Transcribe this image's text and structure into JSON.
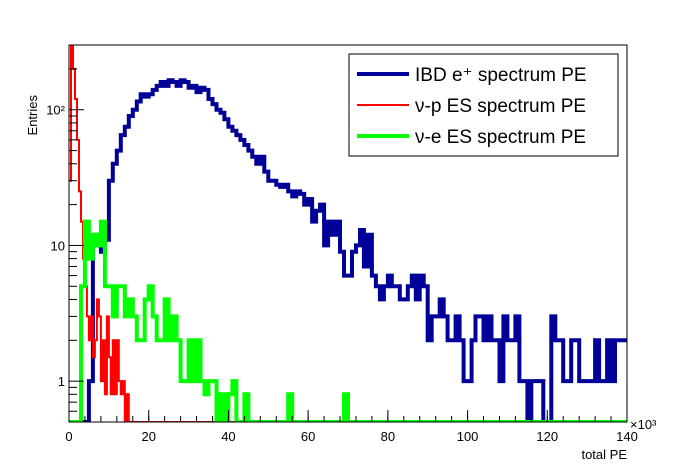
{
  "chart_data": {
    "type": "histogram",
    "xlabel": "total PE",
    "ylabel": "Entries",
    "x_multiplier": "×10³",
    "xlim": [
      0,
      140
    ],
    "ylim": [
      0.5,
      300
    ],
    "yscale": "log",
    "x_ticks": [
      "0",
      "20",
      "40",
      "60",
      "80",
      "100",
      "120",
      "140"
    ],
    "y_ticks": [
      {
        "value": 1,
        "label": "1"
      },
      {
        "value": 10,
        "label": "10"
      },
      {
        "value": 100,
        "label": "10²"
      }
    ],
    "legend": {
      "placement": "top-right",
      "entries": [
        "IBD e⁺ spectrum PE",
        "ν-p ES spectrum PE",
        "ν-e ES spectrum PE"
      ]
    },
    "series": [
      {
        "name": "IBD e⁺ spectrum PE",
        "color": "#000099",
        "bins": [
          [
            0,
            0.5
          ],
          [
            4,
            0.5
          ],
          [
            5,
            1
          ],
          [
            6,
            10
          ],
          [
            7,
            12
          ],
          [
            8,
            9
          ],
          [
            9,
            11
          ],
          [
            10,
            30
          ],
          [
            11,
            40
          ],
          [
            12,
            50
          ],
          [
            13,
            65
          ],
          [
            14,
            75
          ],
          [
            15,
            90
          ],
          [
            16,
            100
          ],
          [
            17,
            115
          ],
          [
            18,
            130
          ],
          [
            19,
            125
          ],
          [
            20,
            130
          ],
          [
            21,
            140
          ],
          [
            22,
            150
          ],
          [
            23,
            160
          ],
          [
            24,
            150
          ],
          [
            25,
            165
          ],
          [
            26,
            160
          ],
          [
            27,
            150
          ],
          [
            28,
            165
          ],
          [
            29,
            160
          ],
          [
            30,
            145
          ],
          [
            31,
            150
          ],
          [
            32,
            135
          ],
          [
            33,
            145
          ],
          [
            34,
            140
          ],
          [
            35,
            120
          ],
          [
            36,
            110
          ],
          [
            37,
            100
          ],
          [
            38,
            95
          ],
          [
            39,
            85
          ],
          [
            40,
            75
          ],
          [
            41,
            70
          ],
          [
            42,
            65
          ],
          [
            43,
            60
          ],
          [
            44,
            55
          ],
          [
            45,
            50
          ],
          [
            46,
            45
          ],
          [
            47,
            40
          ],
          [
            48,
            45
          ],
          [
            49,
            35
          ],
          [
            50,
            30
          ],
          [
            51,
            30
          ],
          [
            52,
            28
          ],
          [
            53,
            27
          ],
          [
            54,
            28
          ],
          [
            55,
            25
          ],
          [
            56,
            23
          ],
          [
            57,
            25
          ],
          [
            58,
            24
          ],
          [
            59,
            20
          ],
          [
            60,
            22
          ],
          [
            61,
            15
          ],
          [
            62,
            18
          ],
          [
            63,
            20
          ],
          [
            64,
            10
          ],
          [
            65,
            15
          ],
          [
            66,
            12
          ],
          [
            67,
            15
          ],
          [
            68,
            9
          ],
          [
            69,
            6
          ],
          [
            70,
            6
          ],
          [
            71,
            9
          ],
          [
            72,
            10
          ],
          [
            73,
            13
          ],
          [
            74,
            7
          ],
          [
            75,
            12
          ],
          [
            76,
            6
          ],
          [
            77,
            5
          ],
          [
            78,
            4
          ],
          [
            79,
            5
          ],
          [
            80,
            6
          ],
          [
            81,
            5
          ],
          [
            82,
            5
          ],
          [
            83,
            4
          ],
          [
            84,
            4
          ],
          [
            85,
            5
          ],
          [
            86,
            6
          ],
          [
            87,
            4
          ],
          [
            88,
            6
          ],
          [
            89,
            5
          ],
          [
            90,
            2
          ],
          [
            91,
            3
          ],
          [
            92,
            3
          ],
          [
            93,
            4
          ],
          [
            94,
            3
          ],
          [
            95,
            2
          ],
          [
            96,
            2
          ],
          [
            97,
            3
          ],
          [
            98,
            2
          ],
          [
            99,
            1
          ],
          [
            100,
            1
          ],
          [
            101,
            2
          ],
          [
            102,
            3
          ],
          [
            103,
            3
          ],
          [
            104,
            2
          ],
          [
            105,
            3
          ],
          [
            106,
            2
          ],
          [
            107,
            2
          ],
          [
            108,
            1
          ],
          [
            109,
            3
          ],
          [
            110,
            2
          ],
          [
            111,
            2
          ],
          [
            112,
            3
          ],
          [
            113,
            1
          ],
          [
            114,
            1
          ],
          [
            115,
            0.5
          ],
          [
            116,
            1
          ],
          [
            117,
            1
          ],
          [
            118,
            1
          ],
          [
            119,
            0.5
          ],
          [
            120,
            0.5
          ],
          [
            121,
            3
          ],
          [
            122,
            2
          ],
          [
            123,
            2
          ],
          [
            124,
            1
          ],
          [
            125,
            1
          ],
          [
            126,
            2
          ],
          [
            127,
            2
          ],
          [
            128,
            1
          ],
          [
            129,
            1
          ],
          [
            130,
            1
          ],
          [
            131,
            1
          ],
          [
            132,
            2
          ],
          [
            133,
            1
          ],
          [
            134,
            1
          ],
          [
            135,
            2
          ],
          [
            136,
            1
          ],
          [
            137,
            2
          ],
          [
            138,
            2
          ],
          [
            139,
            2
          ]
        ]
      },
      {
        "name": "ν-p ES spectrum PE",
        "color": "#ff0000",
        "bins": [
          [
            0,
            30
          ],
          [
            0.5,
            300
          ],
          [
            1,
            200
          ],
          [
            1.5,
            120
          ],
          [
            2,
            60
          ],
          [
            2.5,
            25
          ],
          [
            3,
            15
          ],
          [
            3.5,
            8
          ],
          [
            4,
            5
          ],
          [
            4.5,
            3
          ],
          [
            5,
            2
          ],
          [
            5.5,
            3
          ],
          [
            6,
            1.5
          ],
          [
            6.5,
            2
          ],
          [
            7,
            4
          ],
          [
            7.5,
            3
          ],
          [
            8,
            1
          ],
          [
            8.5,
            2
          ],
          [
            9,
            0.8
          ],
          [
            9.5,
            3
          ],
          [
            10,
            1.5
          ],
          [
            10.5,
            0.8
          ],
          [
            11,
            2
          ],
          [
            11.5,
            0.8
          ],
          [
            12,
            2
          ],
          [
            12.5,
            1
          ],
          [
            13,
            0.8
          ],
          [
            13.5,
            1
          ],
          [
            14,
            0.5
          ],
          [
            14.5,
            0.8
          ],
          [
            15,
            0.5
          ],
          [
            16,
            0.5
          ],
          [
            20,
            0.5
          ],
          [
            30,
            0.5
          ],
          [
            40,
            0.5
          ],
          [
            50,
            0.5
          ],
          [
            60,
            0.5
          ],
          [
            70,
            0.5
          ],
          [
            75,
            0.5
          ]
        ]
      },
      {
        "name": "ν-e ES spectrum PE",
        "color": "#00ff00",
        "bins": [
          [
            0,
            0.5
          ],
          [
            2,
            0.5
          ],
          [
            3,
            5
          ],
          [
            4,
            15
          ],
          [
            5,
            8
          ],
          [
            6,
            12
          ],
          [
            7,
            10
          ],
          [
            8,
            15
          ],
          [
            9,
            5
          ],
          [
            10,
            5
          ],
          [
            11,
            3
          ],
          [
            12,
            5
          ],
          [
            13,
            5
          ],
          [
            14,
            3
          ],
          [
            15,
            4
          ],
          [
            16,
            3
          ],
          [
            17,
            2
          ],
          [
            18,
            2
          ],
          [
            19,
            4
          ],
          [
            20,
            5
          ],
          [
            21,
            3
          ],
          [
            22,
            2
          ],
          [
            23,
            2
          ],
          [
            24,
            4
          ],
          [
            25,
            2
          ],
          [
            26,
            3
          ],
          [
            27,
            2
          ],
          [
            28,
            1
          ],
          [
            29,
            1
          ],
          [
            30,
            2
          ],
          [
            31,
            1
          ],
          [
            32,
            2
          ],
          [
            33,
            1
          ],
          [
            34,
            0.8
          ],
          [
            35,
            1
          ],
          [
            36,
            1
          ],
          [
            37,
            0.5
          ],
          [
            38,
            0.8
          ],
          [
            39,
            0.5
          ],
          [
            40,
            0.8
          ],
          [
            41,
            1
          ],
          [
            42,
            0.5
          ],
          [
            43,
            0.5
          ],
          [
            44,
            0.8
          ],
          [
            45,
            0.5
          ],
          [
            46,
            0.5
          ],
          [
            47,
            0.5
          ],
          [
            48,
            0.5
          ],
          [
            49,
            0.5
          ],
          [
            50,
            0.5
          ],
          [
            51,
            0.5
          ],
          [
            52,
            0.5
          ],
          [
            53,
            0.5
          ],
          [
            54,
            0.5
          ],
          [
            55,
            0.8
          ],
          [
            56,
            0.5
          ],
          [
            57,
            0.5
          ],
          [
            58,
            0.5
          ],
          [
            59,
            0.5
          ],
          [
            60,
            0.5
          ],
          [
            61,
            0.5
          ],
          [
            62,
            0.5
          ],
          [
            63,
            0.5
          ],
          [
            64,
            0.5
          ],
          [
            65,
            0.5
          ],
          [
            66,
            0.5
          ],
          [
            67,
            0.5
          ],
          [
            68,
            0.5
          ],
          [
            69,
            0.8
          ],
          [
            70,
            0.5
          ],
          [
            75,
            0.5
          ]
        ]
      }
    ]
  }
}
